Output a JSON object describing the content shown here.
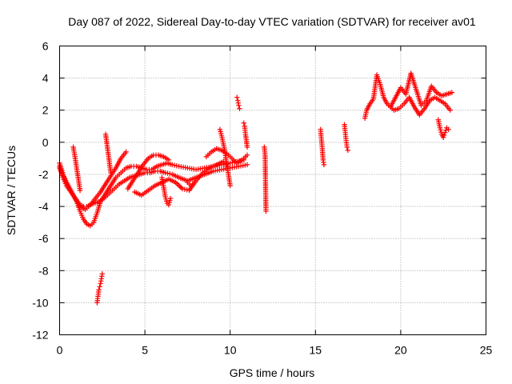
{
  "chart_data": {
    "type": "scatter",
    "title": "Day 087 of 2022, Sidereal Day-to-day VTEC variation (SDTVAR) for receiver av01",
    "xlabel": "GPS time / hours",
    "ylabel": "SDTVAR / TECUs",
    "xlim": [
      0,
      25
    ],
    "ylim": [
      -12,
      6
    ],
    "xticks": [
      "0",
      "5",
      "10",
      "15",
      "20",
      "25"
    ],
    "yticks": [
      "-12",
      "-10",
      "-8",
      "-6",
      "-4",
      "-2",
      "0",
      "2",
      "4",
      "6"
    ],
    "grid": true,
    "marker": "+",
    "color": "#ff0000",
    "series": [
      {
        "name": "SDTVAR",
        "segments": [
          {
            "x": [
              0.0,
              0.2,
              0.4,
              0.6,
              0.8,
              1.0,
              1.2,
              1.4,
              1.6,
              1.8,
              2.0,
              2.2,
              2.4,
              2.7,
              3.0,
              3.3,
              3.6,
              3.9,
              4.2,
              4.5,
              4.8,
              5.1,
              5.4,
              5.7,
              6.0,
              6.3,
              6.6,
              7.0,
              7.5,
              8.0,
              8.5,
              9.0,
              9.5,
              10.0,
              10.4,
              10.8
            ],
            "y": [
              -1.3,
              -2.0,
              -2.5,
              -2.9,
              -3.3,
              -3.7,
              -4.3,
              -4.8,
              -5.1,
              -5.2,
              -5.0,
              -4.4,
              -3.7,
              -3.2,
              -2.7,
              -2.2,
              -1.9,
              -1.6,
              -1.5,
              -1.5,
              -1.6,
              -1.7,
              -1.7,
              -1.5,
              -1.4,
              -1.3,
              -1.4,
              -1.5,
              -1.6,
              -1.7,
              -1.6,
              -1.5,
              -1.4,
              -1.3,
              -1.2,
              -1.1
            ]
          },
          {
            "x": [
              0.0,
              0.2,
              0.4,
              0.6,
              0.8,
              1.0,
              1.2,
              1.4,
              1.6,
              1.8,
              2.0,
              2.3,
              2.6,
              2.9,
              3.2,
              3.5,
              3.8,
              4.1,
              4.4,
              4.7,
              5.0,
              5.3,
              5.6,
              5.9,
              6.2,
              6.6,
              7.0,
              7.5,
              8.0,
              8.5,
              9.0,
              9.5,
              10.0,
              10.5,
              11.0
            ],
            "y": [
              -1.5,
              -2.2,
              -2.7,
              -3.0,
              -3.3,
              -3.6,
              -3.9,
              -4.0,
              -4.0,
              -3.9,
              -3.8,
              -3.7,
              -3.5,
              -3.2,
              -2.9,
              -2.6,
              -2.4,
              -2.2,
              -2.1,
              -2.0,
              -1.9,
              -1.9,
              -1.8,
              -1.8,
              -1.9,
              -2.0,
              -2.2,
              -2.4,
              -2.2,
              -2.0,
              -1.8,
              -1.7,
              -1.6,
              -1.5,
              -1.4
            ]
          },
          {
            "x": [
              0.0,
              0.3,
              0.6,
              0.9,
              1.2,
              1.5,
              1.8,
              2.1,
              2.4,
              2.7,
              3.0,
              3.3,
              3.6,
              3.9
            ],
            "y": [
              -1.6,
              -2.3,
              -2.9,
              -3.5,
              -4.0,
              -4.2,
              -3.9,
              -3.5,
              -3.1,
              -2.6,
              -2.1,
              -1.6,
              -1.0,
              -0.6
            ]
          },
          {
            "x": [
              4.0,
              4.3,
              4.6,
              4.9,
              5.2,
              5.5,
              5.8,
              6.1,
              6.4
            ],
            "y": [
              -2.9,
              -2.4,
              -1.9,
              -1.4,
              -1.0,
              -0.8,
              -0.8,
              -0.9,
              -1.1
            ]
          },
          {
            "x": [
              4.4,
              4.8,
              5.2,
              5.6,
              6.0,
              6.4,
              6.8,
              7.2,
              7.6,
              8.0,
              8.4,
              8.8,
              9.2,
              9.6
            ],
            "y": [
              -3.1,
              -3.3,
              -3.0,
              -2.7,
              -2.5,
              -2.3,
              -2.5,
              -2.9,
              -3.0,
              -2.4,
              -1.9,
              -1.6,
              -1.4,
              -1.2
            ]
          },
          {
            "x": [
              8.6,
              8.9,
              9.2,
              9.5,
              9.8,
              10.1,
              10.4,
              10.7,
              11.0
            ],
            "y": [
              -0.9,
              -0.6,
              -0.4,
              -0.5,
              -0.7,
              -1.0,
              -1.3,
              -1.1,
              -0.8
            ]
          },
          {
            "x": [
              0.8,
              0.9,
              1.0,
              1.1,
              1.2
            ],
            "y": [
              -0.3,
              -0.9,
              -1.6,
              -2.3,
              -3.0
            ]
          },
          {
            "x": [
              2.7,
              2.8,
              2.9,
              3.0
            ],
            "y": [
              0.5,
              -0.3,
              -1.1,
              -1.9
            ]
          },
          {
            "x": [
              2.2,
              2.25,
              2.3,
              2.35,
              2.4,
              2.45,
              2.5
            ],
            "y": [
              -10.0,
              -9.6,
              -9.2,
              -9.0,
              -8.8,
              -8.5,
              -8.2
            ]
          },
          {
            "x": [
              6.0,
              6.1,
              6.2,
              6.3,
              6.4,
              6.5
            ],
            "y": [
              -2.2,
              -2.8,
              -3.4,
              -3.8,
              -3.9,
              -3.5
            ]
          },
          {
            "x": [
              7.5,
              7.6,
              7.7,
              7.8
            ],
            "y": [
              -2.5,
              -2.6,
              -2.7,
              -2.6
            ]
          },
          {
            "x": [
              9.4,
              9.5,
              9.6,
              9.7,
              9.8,
              9.9,
              10.0
            ],
            "y": [
              0.8,
              0.4,
              -0.1,
              -0.6,
              -1.4,
              -2.0,
              -2.7
            ]
          },
          {
            "x": [
              10.4,
              10.45,
              10.5,
              10.55
            ],
            "y": [
              2.8,
              2.6,
              2.3,
              2.1
            ]
          },
          {
            "x": [
              10.8,
              10.85,
              10.9,
              11.0
            ],
            "y": [
              1.2,
              1.0,
              0.5,
              -0.3
            ]
          },
          {
            "x": [
              12.0,
              12.05,
              12.1
            ],
            "y": [
              -0.3,
              -0.8,
              -4.3
            ]
          },
          {
            "x": [
              15.3,
              15.35,
              15.4,
              15.45,
              15.5
            ],
            "y": [
              0.8,
              0.2,
              -0.4,
              -1.1,
              -1.4
            ]
          },
          {
            "x": [
              16.7,
              16.75,
              16.8,
              16.85,
              16.9
            ],
            "y": [
              1.1,
              0.6,
              0.1,
              -0.3,
              -0.5
            ]
          },
          {
            "x": [
              17.9,
              18.0,
              18.2,
              18.4,
              18.6,
              18.8,
              19.0,
              19.2,
              19.4,
              19.7,
              20.0,
              20.3,
              20.6,
              20.9,
              21.2,
              21.5,
              21.8,
              22.1,
              22.4,
              22.7,
              23.0
            ],
            "y": [
              1.5,
              2.0,
              2.4,
              2.7,
              4.2,
              3.6,
              2.8,
              2.4,
              2.2,
              2.8,
              3.4,
              3.0,
              4.3,
              3.3,
              2.3,
              2.6,
              3.5,
              3.1,
              2.9,
              3.0,
              3.1
            ]
          },
          {
            "x": [
              19.3,
              19.6,
              19.9,
              20.2,
              20.5,
              20.8,
              21.1,
              21.4,
              21.7,
              22.0,
              22.3,
              22.6,
              22.9
            ],
            "y": [
              2.3,
              2.0,
              2.1,
              2.4,
              2.8,
              2.2,
              1.7,
              2.1,
              2.6,
              2.8,
              2.6,
              2.4,
              2.0
            ]
          },
          {
            "x": [
              22.2,
              22.3,
              22.4,
              22.5,
              22.6,
              22.7,
              22.8
            ],
            "y": [
              1.4,
              0.9,
              0.5,
              0.3,
              0.6,
              0.9,
              0.8
            ]
          }
        ]
      }
    ]
  }
}
